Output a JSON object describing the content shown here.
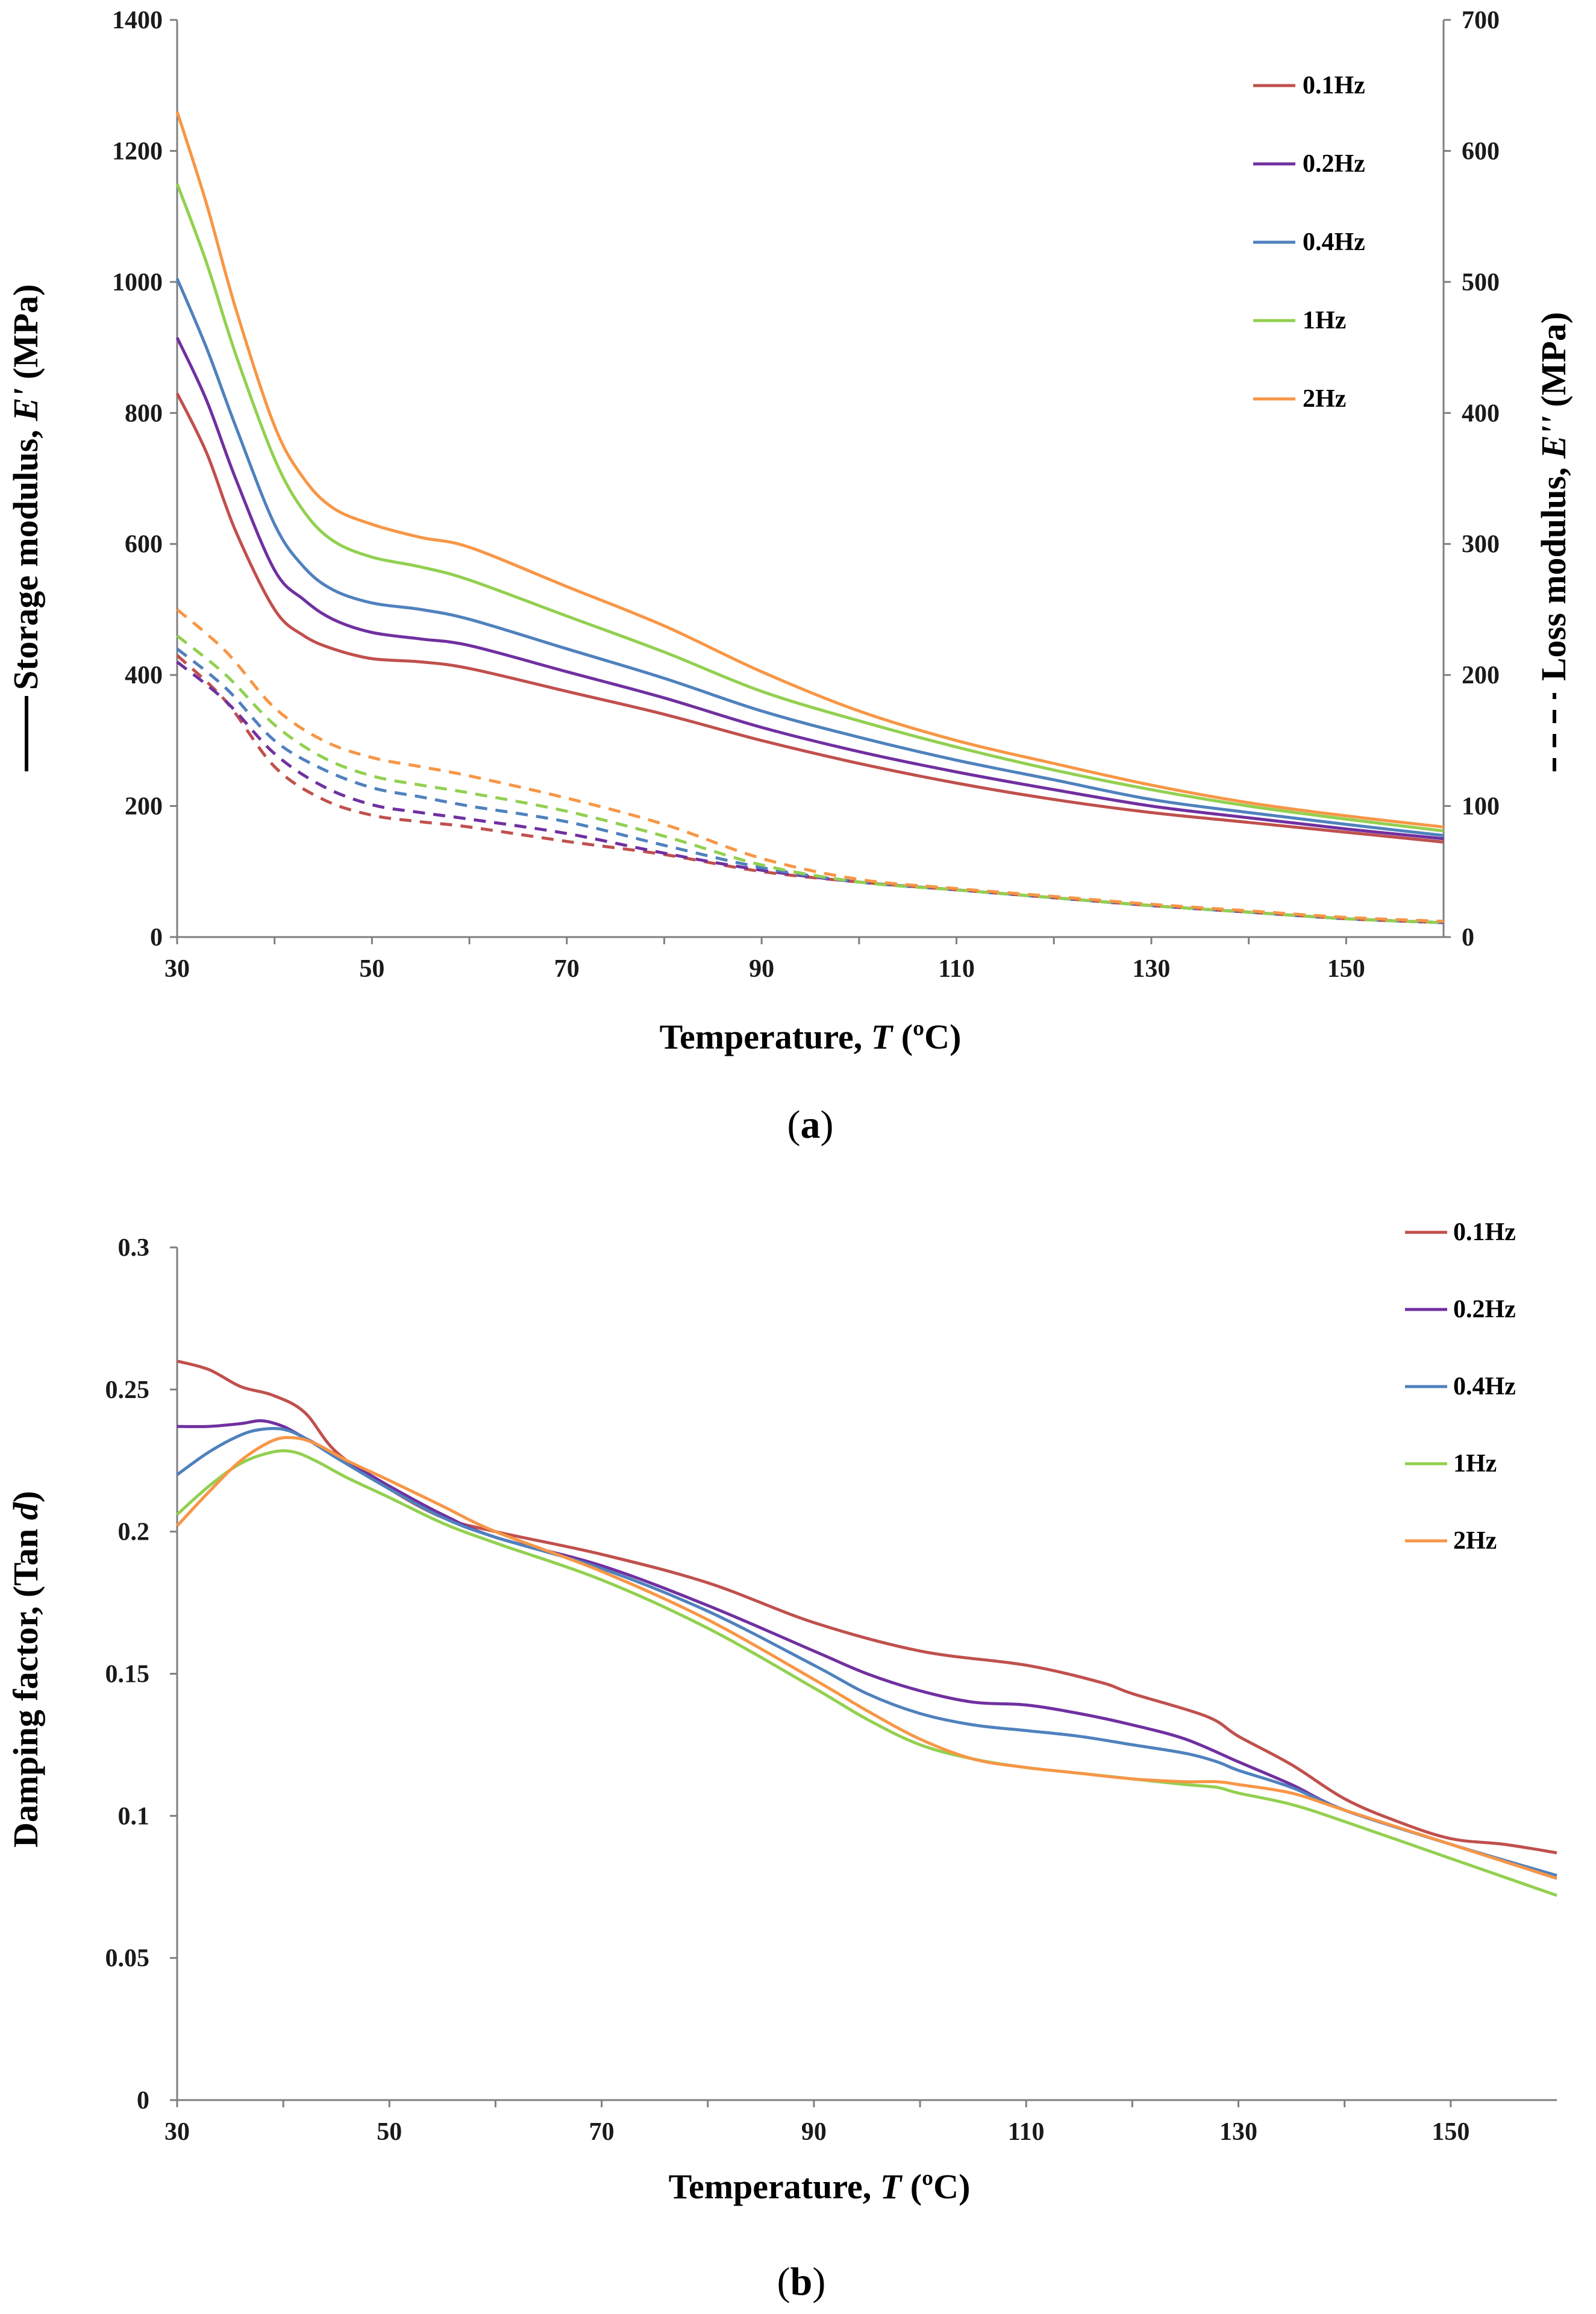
{
  "chart_data": [
    {
      "id": "a",
      "type": "line",
      "caption": {
        "open": "(",
        "letter": "a",
        "close": ")"
      },
      "xlabel": {
        "text": "Temperature, ",
        "var": "T",
        "unit": " (ºC)"
      },
      "ylabel_left": {
        "text": "Storage modulus, ",
        "var": "E'",
        "unit": " (MPa)"
      },
      "ylabel_right": {
        "text": "Loss modulus, ",
        "var": "E''",
        "unit": " (MPa)"
      },
      "xlim": [
        30,
        160
      ],
      "ylim_left": [
        0,
        1400
      ],
      "ylim_right": [
        0,
        700
      ],
      "xticks": [
        "30",
        "50",
        "70",
        "90",
        "110",
        "130",
        "150"
      ],
      "yticks_left": [
        "0",
        "200",
        "400",
        "600",
        "800",
        "1000",
        "1200",
        "1400"
      ],
      "yticks_right": [
        "0",
        "100",
        "200",
        "300",
        "400",
        "500",
        "600",
        "700"
      ],
      "legend": [
        "0.1Hz",
        "0.2Hz",
        "0.4Hz",
        "1Hz",
        "2Hz"
      ],
      "colors": [
        "#c0504d",
        "#7030a0",
        "#4f81bd",
        "#92d050",
        "#f79646"
      ],
      "storage_series": [
        {
          "name": "0.1Hz",
          "x": [
            30,
            33,
            36,
            40,
            43,
            46,
            50,
            55,
            60,
            70,
            80,
            90,
            100,
            110,
            120,
            130,
            140,
            150,
            160
          ],
          "values": [
            830,
            740,
            620,
            500,
            460,
            440,
            425,
            420,
            410,
            375,
            340,
            300,
            265,
            235,
            210,
            190,
            175,
            160,
            145
          ]
        },
        {
          "name": "0.2Hz",
          "x": [
            30,
            33,
            36,
            40,
            43,
            46,
            50,
            55,
            60,
            70,
            80,
            90,
            100,
            110,
            120,
            130,
            140,
            150,
            160
          ],
          "values": [
            915,
            820,
            700,
            560,
            515,
            485,
            465,
            455,
            445,
            405,
            365,
            320,
            283,
            252,
            225,
            200,
            182,
            165,
            150
          ]
        },
        {
          "name": "0.4Hz",
          "x": [
            30,
            33,
            36,
            40,
            43,
            46,
            50,
            55,
            60,
            70,
            80,
            90,
            100,
            110,
            120,
            130,
            140,
            150,
            160
          ],
          "values": [
            1005,
            900,
            780,
            630,
            565,
            530,
            510,
            500,
            485,
            440,
            395,
            345,
            305,
            270,
            240,
            210,
            190,
            172,
            155
          ]
        },
        {
          "name": "1Hz",
          "x": [
            30,
            33,
            36,
            40,
            43,
            46,
            50,
            55,
            60,
            70,
            80,
            90,
            100,
            110,
            120,
            130,
            140,
            150,
            160
          ],
          "values": [
            1150,
            1030,
            890,
            730,
            650,
            605,
            580,
            565,
            545,
            490,
            435,
            375,
            330,
            290,
            255,
            225,
            200,
            180,
            162
          ]
        },
        {
          "name": "2Hz",
          "x": [
            30,
            33,
            36,
            40,
            43,
            46,
            50,
            55,
            60,
            70,
            80,
            90,
            100,
            110,
            120,
            130,
            140,
            150,
            160
          ],
          "values": [
            1260,
            1120,
            960,
            780,
            700,
            655,
            630,
            610,
            595,
            535,
            475,
            405,
            345,
            300,
            265,
            232,
            205,
            185,
            168
          ]
        }
      ],
      "loss_series": [
        {
          "name": "0.1Hz",
          "x": [
            30,
            35,
            40,
            45,
            50,
            55,
            60,
            70,
            80,
            90,
            100,
            110,
            120,
            130,
            140,
            150,
            160
          ],
          "values": [
            215,
            180,
            130,
            105,
            93,
            88,
            84,
            73,
            63,
            50,
            42,
            36,
            30,
            24,
            19,
            14,
            11
          ]
        },
        {
          "name": "0.2Hz",
          "x": [
            30,
            35,
            40,
            45,
            50,
            55,
            60,
            70,
            80,
            90,
            100,
            110,
            120,
            130,
            140,
            150,
            160
          ],
          "values": [
            210,
            180,
            140,
            115,
            101,
            95,
            90,
            79,
            64,
            51,
            42,
            36,
            30,
            24,
            19,
            14,
            11
          ]
        },
        {
          "name": "0.4Hz",
          "x": [
            30,
            35,
            40,
            45,
            50,
            55,
            60,
            70,
            80,
            90,
            100,
            110,
            120,
            130,
            140,
            150,
            160
          ],
          "values": [
            220,
            190,
            150,
            128,
            114,
            107,
            100,
            88,
            70,
            53,
            42,
            36,
            30,
            24,
            19,
            14,
            11
          ]
        },
        {
          "name": "1Hz",
          "x": [
            30,
            35,
            40,
            45,
            50,
            55,
            60,
            70,
            80,
            90,
            100,
            110,
            120,
            130,
            140,
            150,
            160
          ],
          "values": [
            230,
            200,
            162,
            137,
            123,
            116,
            110,
            96,
            77,
            55,
            42,
            36,
            30,
            24,
            19,
            14,
            11
          ]
        },
        {
          "name": "2Hz",
          "x": [
            30,
            35,
            40,
            45,
            50,
            55,
            60,
            70,
            80,
            90,
            100,
            110,
            120,
            130,
            140,
            150,
            160
          ],
          "values": [
            250,
            218,
            175,
            150,
            137,
            130,
            123,
            106,
            86,
            60,
            44,
            37,
            31,
            25,
            20,
            15,
            12
          ]
        }
      ]
    },
    {
      "id": "b",
      "type": "line",
      "caption": {
        "open": "(",
        "letter": "b",
        "close": ")"
      },
      "xlabel": {
        "text": "Temperature, ",
        "var": "T",
        "unit": " (ºC)"
      },
      "ylabel": {
        "text": "Damping factor, (Tan ",
        "var": "d",
        "unit": ")"
      },
      "xlim": [
        30,
        160
      ],
      "ylim": [
        0,
        0.3
      ],
      "xticks": [
        "30",
        "50",
        "70",
        "90",
        "110",
        "130",
        "150"
      ],
      "yticks": [
        "0",
        "0.05",
        "0.1",
        "0.15",
        "0.2",
        "0.25",
        "0.3"
      ],
      "legend": [
        "0.1Hz",
        "0.2Hz",
        "0.4Hz",
        "1Hz",
        "2Hz"
      ],
      "colors": [
        "#c0504d",
        "#7030a0",
        "#4f81bd",
        "#92d050",
        "#f79646"
      ],
      "series": [
        {
          "name": "0.1Hz",
          "x": [
            30,
            33,
            36,
            39,
            42,
            45,
            50,
            55,
            60,
            70,
            80,
            90,
            100,
            110,
            117,
            120,
            127,
            130,
            135,
            140,
            145,
            150,
            155,
            160
          ],
          "values": [
            0.26,
            0.257,
            0.251,
            0.248,
            0.242,
            0.228,
            0.215,
            0.205,
            0.2,
            0.192,
            0.182,
            0.168,
            0.158,
            0.153,
            0.147,
            0.143,
            0.135,
            0.128,
            0.118,
            0.106,
            0.098,
            0.092,
            0.09,
            0.087
          ]
        },
        {
          "name": "0.2Hz",
          "x": [
            30,
            33,
            36,
            38,
            40,
            42,
            45,
            50,
            55,
            60,
            70,
            80,
            90,
            95,
            100,
            105,
            110,
            115,
            120,
            125,
            130,
            135,
            140,
            150,
            160
          ],
          "values": [
            0.237,
            0.237,
            0.238,
            0.239,
            0.237,
            0.233,
            0.227,
            0.216,
            0.206,
            0.198,
            0.188,
            0.174,
            0.158,
            0.15,
            0.144,
            0.14,
            0.139,
            0.136,
            0.132,
            0.127,
            0.119,
            0.111,
            0.102,
            0.09,
            0.078
          ]
        },
        {
          "name": "0.4Hz",
          "x": [
            30,
            33,
            36,
            38,
            40,
            42,
            45,
            50,
            55,
            60,
            70,
            80,
            90,
            95,
            100,
            105,
            110,
            115,
            120,
            125,
            128,
            130,
            135,
            140,
            150,
            160
          ],
          "values": [
            0.22,
            0.228,
            0.234,
            0.236,
            0.236,
            0.233,
            0.226,
            0.215,
            0.205,
            0.198,
            0.187,
            0.172,
            0.153,
            0.143,
            0.136,
            0.132,
            0.13,
            0.128,
            0.125,
            0.122,
            0.119,
            0.116,
            0.11,
            0.102,
            0.09,
            0.079
          ]
        },
        {
          "name": "1Hz",
          "x": [
            30,
            33,
            36,
            39,
            41,
            43,
            46,
            50,
            55,
            60,
            70,
            80,
            90,
            95,
            100,
            105,
            110,
            115,
            120,
            125,
            128,
            130,
            135,
            140,
            150,
            160
          ],
          "values": [
            0.206,
            0.216,
            0.224,
            0.228,
            0.228,
            0.225,
            0.219,
            0.212,
            0.203,
            0.196,
            0.183,
            0.166,
            0.145,
            0.134,
            0.125,
            0.12,
            0.117,
            0.115,
            0.113,
            0.111,
            0.11,
            0.108,
            0.104,
            0.098,
            0.085,
            0.072
          ]
        },
        {
          "name": "2Hz",
          "x": [
            30,
            33,
            36,
            39,
            41,
            43,
            46,
            50,
            55,
            60,
            70,
            80,
            90,
            95,
            100,
            105,
            110,
            115,
            120,
            125,
            128,
            130,
            135,
            140,
            150,
            160
          ],
          "values": [
            0.202,
            0.214,
            0.225,
            0.232,
            0.233,
            0.231,
            0.225,
            0.218,
            0.209,
            0.2,
            0.186,
            0.169,
            0.148,
            0.137,
            0.127,
            0.12,
            0.117,
            0.115,
            0.113,
            0.112,
            0.112,
            0.111,
            0.108,
            0.102,
            0.09,
            0.078
          ]
        }
      ]
    }
  ]
}
